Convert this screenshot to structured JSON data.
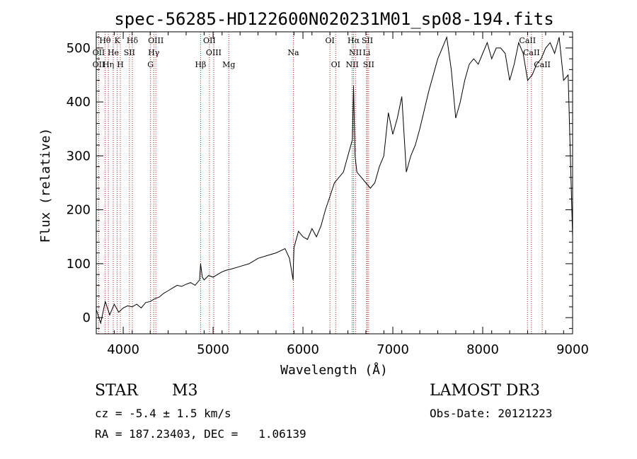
{
  "chart_data": {
    "type": "line",
    "title": "spec-56285-HD122600N020231M01_sp08-194.fits",
    "xlabel": "Wavelength (Å)",
    "ylabel": "Flux (relative)",
    "xlim": [
      3700,
      9000
    ],
    "ylim": [
      -30,
      530
    ],
    "xticks": [
      4000,
      5000,
      6000,
      7000,
      8000,
      9000
    ],
    "yticks": [
      0,
      100,
      200,
      300,
      400,
      500
    ],
    "series": [
      {
        "name": "spectrum",
        "x": [
          3700,
          3750,
          3800,
          3850,
          3900,
          3950,
          4000,
          4050,
          4100,
          4150,
          4200,
          4250,
          4300,
          4350,
          4400,
          4450,
          4500,
          4550,
          4600,
          4650,
          4700,
          4750,
          4800,
          4850,
          4861,
          4880,
          4900,
          4950,
          5000,
          5050,
          5100,
          5150,
          5200,
          5300,
          5400,
          5500,
          5600,
          5700,
          5800,
          5850,
          5890,
          5893,
          5900,
          5950,
          6000,
          6050,
          6100,
          6150,
          6200,
          6250,
          6300,
          6350,
          6400,
          6450,
          6500,
          6550,
          6563,
          6580,
          6600,
          6650,
          6700,
          6750,
          6800,
          6850,
          6900,
          6950,
          7000,
          7050,
          7100,
          7150,
          7200,
          7250,
          7300,
          7400,
          7500,
          7550,
          7600,
          7650,
          7700,
          7750,
          7800,
          7850,
          7900,
          7950,
          8000,
          8050,
          8100,
          8150,
          8200,
          8250,
          8300,
          8350,
          8400,
          8450,
          8500,
          8550,
          8600,
          8650,
          8700,
          8750,
          8800,
          8850,
          8900,
          8950,
          9000
        ],
        "values": [
          15,
          -10,
          30,
          5,
          25,
          10,
          18,
          22,
          20,
          25,
          18,
          28,
          30,
          35,
          38,
          45,
          50,
          55,
          60,
          58,
          62,
          65,
          60,
          70,
          100,
          75,
          70,
          78,
          75,
          80,
          85,
          88,
          90,
          95,
          100,
          110,
          115,
          120,
          128,
          110,
          70,
          95,
          130,
          160,
          150,
          145,
          165,
          150,
          170,
          200,
          225,
          250,
          260,
          270,
          300,
          330,
          430,
          300,
          270,
          260,
          250,
          240,
          250,
          280,
          300,
          380,
          340,
          370,
          410,
          270,
          300,
          320,
          350,
          420,
          480,
          500,
          520,
          460,
          370,
          400,
          440,
          470,
          480,
          470,
          490,
          510,
          480,
          500,
          500,
          490,
          440,
          470,
          510,
          490,
          440,
          450,
          470,
          480,
          500,
          510,
          490,
          520,
          440,
          450,
          150
        ]
      }
    ],
    "lines_top": [
      {
        "label": "Hθ",
        "wl": 3798,
        "row": 1
      },
      {
        "label": "K",
        "wl": 3934,
        "row": 1
      },
      {
        "label": "Hδ",
        "wl": 4102,
        "row": 1
      },
      {
        "label": "OIII",
        "wl": 4363,
        "row": 1
      },
      {
        "label": "OII",
        "wl": 4959,
        "row": 1
      },
      {
        "label": "OI",
        "wl": 6300,
        "row": 1
      },
      {
        "label": "Hα",
        "wl": 6563,
        "row": 1
      },
      {
        "label": "SII",
        "wl": 6716,
        "row": 1
      },
      {
        "label": "CaII",
        "wl": 8498,
        "row": 1
      },
      {
        "label": "OII",
        "wl": 3727,
        "row": 2
      },
      {
        "label": "He",
        "wl": 3889,
        "row": 2
      },
      {
        "label": "SII",
        "wl": 4069,
        "row": 2
      },
      {
        "label": "Hγ",
        "wl": 4340,
        "row": 2
      },
      {
        "label": "OIII",
        "wl": 5007,
        "row": 2
      },
      {
        "label": "Na",
        "wl": 5893,
        "row": 2
      },
      {
        "label": "NII",
        "wl": 6584,
        "row": 2
      },
      {
        "label": "Li",
        "wl": 6708,
        "row": 2
      },
      {
        "label": "CaII",
        "wl": 8542,
        "row": 2
      },
      {
        "label": "OII",
        "wl": 3727,
        "row": 3
      },
      {
        "label": "Hη",
        "wl": 3835,
        "row": 3
      },
      {
        "label": "H",
        "wl": 3968,
        "row": 3
      },
      {
        "label": "G",
        "wl": 4304,
        "row": 3
      },
      {
        "label": "Hβ",
        "wl": 4861,
        "row": 3
      },
      {
        "label": "Mg",
        "wl": 5175,
        "row": 3
      },
      {
        "label": "OI",
        "wl": 6364,
        "row": 3
      },
      {
        "label": "NII",
        "wl": 6548,
        "row": 3
      },
      {
        "label": "SII",
        "wl": 6731,
        "row": 3
      },
      {
        "label": "CaII",
        "wl": 8662,
        "row": 3
      }
    ],
    "line_color": "#b22222"
  },
  "info": {
    "class_label": "STAR",
    "subclass": "M3",
    "survey": "LAMOST DR3",
    "cz": "cz = -5.4 ± 1.5 km/s",
    "obs_date": "Obs-Date: 20121223",
    "coords": "RA = 187.23403, DEC =   1.06139"
  }
}
